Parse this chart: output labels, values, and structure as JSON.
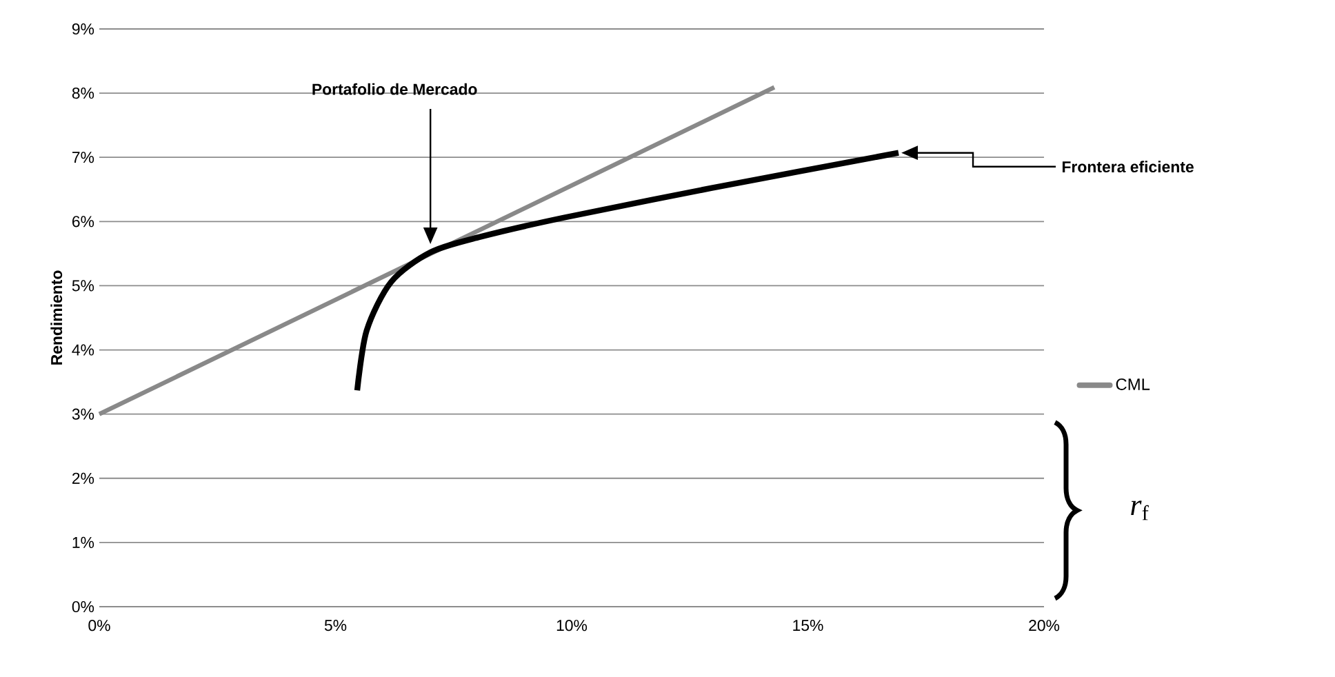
{
  "chart_data": {
    "type": "line",
    "ylabel": "Rendimiento",
    "series": [
      {
        "name": "CML",
        "color": "#898989",
        "x": [
          0,
          14.29
        ],
        "values": [
          3,
          8.09
        ]
      },
      {
        "color": "#000000",
        "x": [
          5.46,
          5.66,
          6.18,
          7.01,
          8.06,
          9.83,
          12.95,
          16.92
        ],
        "values": [
          3.37,
          4.3,
          5.06,
          5.52,
          5.76,
          6.06,
          6.52,
          7.07
        ]
      }
    ],
    "xlim": [
      0,
      20
    ],
    "xticks": [
      {
        "value": 0,
        "label": "0%"
      },
      {
        "value": 5,
        "label": "5%"
      },
      {
        "value": 10,
        "label": "10%"
      },
      {
        "value": 15,
        "label": "15%"
      },
      {
        "value": 20,
        "label": "20%"
      }
    ],
    "ylim": [
      0,
      9
    ],
    "yticks": [
      {
        "value": 0,
        "label": "0%"
      },
      {
        "value": 1,
        "label": "1%"
      },
      {
        "value": 2,
        "label": "2%"
      },
      {
        "value": 3,
        "label": "3%"
      },
      {
        "value": 4,
        "label": "4%"
      },
      {
        "value": 5,
        "label": "5%"
      },
      {
        "value": 6,
        "label": "6%"
      },
      {
        "value": 7,
        "label": "7%"
      },
      {
        "value": 8,
        "label": "8%"
      },
      {
        "value": 9,
        "label": "9%"
      }
    ],
    "grid": "y",
    "legend": "right",
    "marker": "none",
    "line_style": "solid",
    "annotations": [
      "Portafolio de Mercado",
      "Frontera eficiente",
      "*r*$_{f}$"
    ]
  }
}
